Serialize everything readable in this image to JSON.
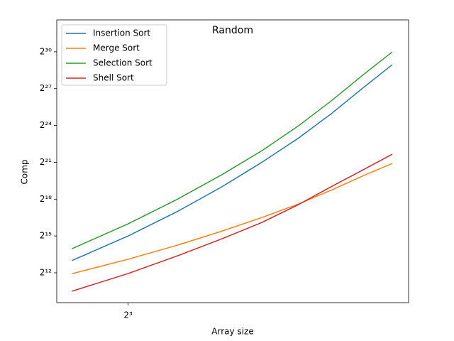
{
  "chart_data": {
    "type": "line",
    "title": "Random",
    "x_label": "Array size",
    "y_label": "Comp",
    "log_x": 2,
    "log_y": 2,
    "legend": "upper left",
    "x": [
      7,
      8,
      9,
      10,
      11,
      12,
      13,
      14,
      15
    ],
    "series": [
      {
        "name": "Insertion Sort",
        "color": "#1f77b4",
        "values": [
          8192,
          32768,
          131072,
          524288,
          2097152,
          8200000,
          33554432,
          141000000,
          515000000
        ]
      },
      {
        "name": "Merge Sort",
        "color": "#ff7f0e",
        "values": [
          3900,
          8800,
          19500,
          43000,
          92700,
          199000,
          444000,
          979000,
          1960000
        ]
      },
      {
        "name": "Selection Sort",
        "color": "#2ca02c",
        "values": [
          16000,
          65000,
          262000,
          1040000,
          4030000,
          16400000,
          69500000,
          293000000,
          1060000000
        ]
      },
      {
        "name": "Shell Sort",
        "color": "#d62728",
        "values": [
          1450,
          3930,
          10700,
          27900,
          70200,
          192000,
          542000,
          1370000,
          3290000
        ]
      }
    ],
    "xlim": [
      6.75,
      15.6
    ],
    "xticks": [
      {
        "value": 8,
        "label": "2³"
      }
    ],
    "ylim": [
      760,
      6500000000
    ],
    "yticks": [
      {
        "value": 4096,
        "label": "2¹²"
      },
      {
        "value": 32768,
        "label": "2¹⁵"
      },
      {
        "value": 262144,
        "label": "2¹⁸"
      },
      {
        "value": 2097152,
        "label": "2²¹"
      },
      {
        "value": 16777216,
        "label": "2²⁴"
      },
      {
        "value": 134217728,
        "label": "2²⁷"
      },
      {
        "value": 1073741824,
        "label": "2³⁰"
      }
    ]
  }
}
